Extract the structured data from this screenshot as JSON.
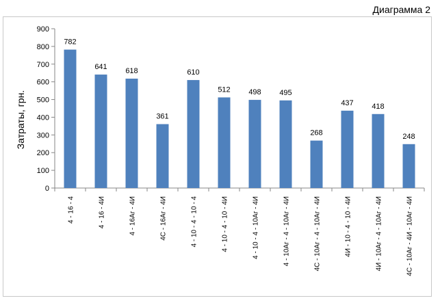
{
  "caption": "Диаграмма 2",
  "chart_data": {
    "type": "bar",
    "title": "",
    "xlabel": "",
    "ylabel": "Затраты, грн.",
    "ylim": [
      0,
      900
    ],
    "yticks": [
      0,
      100,
      200,
      300,
      400,
      500,
      600,
      700,
      800,
      900
    ],
    "grid": false,
    "legend": "none",
    "bar_color": "#4F81BD",
    "categories": [
      "4 - 16 - 4",
      "4 - 16 - 4И",
      "4 - 16Аг - 4И",
      "4С - 16Аг - 4И",
      "4 - 10 - 4 - 10 - 4",
      "4 - 10 - 4 - 10 - 4И",
      "4 - 10 - 4 - 10Аг - 4И",
      "4 - 10Аг - 4 - 10Аг - 4И",
      "4С - 10Аг - 4 - 10Аг - 4И",
      "4И - 10 - 4 - 10 - 4И",
      "4И - 10Аг - 4 - 10Аг - 4И",
      "4С - 10Аг - 4И - 10Аг - 4И"
    ],
    "values": [
      782,
      641,
      618,
      361,
      610,
      512,
      498,
      495,
      268,
      437,
      418,
      248
    ]
  }
}
